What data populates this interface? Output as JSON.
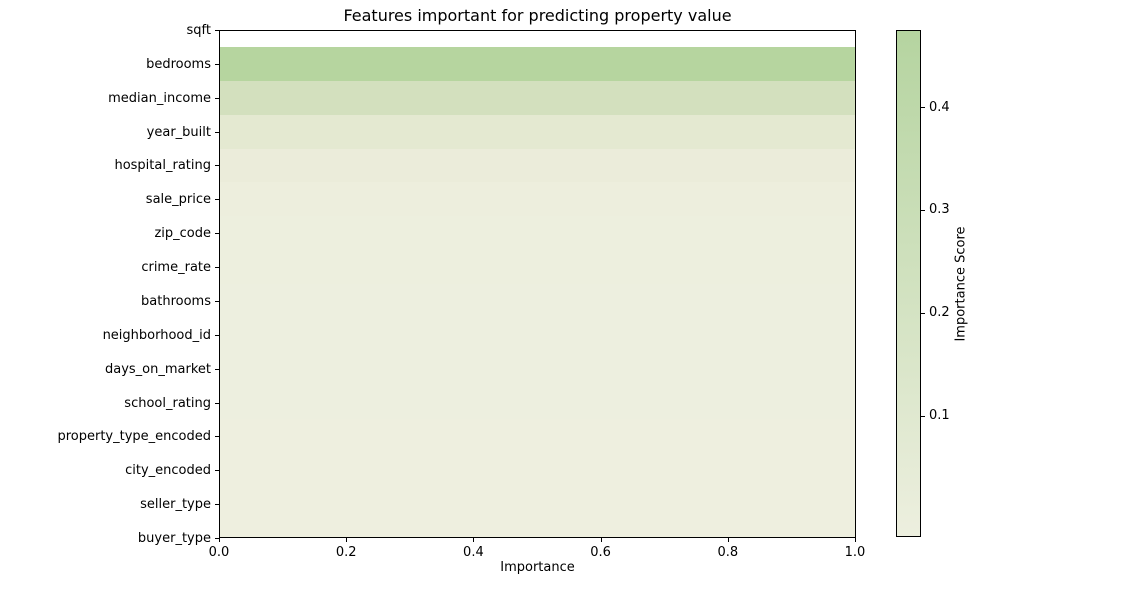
{
  "figure": {
    "background_color": "#ffffff",
    "text_color": "#000000"
  },
  "chart_data": {
    "type": "bar",
    "orientation": "horizontal",
    "title": "Features important for predicting property value",
    "xlabel": "Importance",
    "ylabel": "",
    "xlim": [
      0.0,
      1.0
    ],
    "grid": false,
    "x_tick_values": [
      0.0,
      0.2,
      0.4,
      0.6,
      0.8,
      1.0
    ],
    "x_tick_labels": [
      "0.0",
      "0.2",
      "0.4",
      "0.6",
      "0.8",
      "1.0"
    ],
    "categories": [
      "sqft",
      "bedrooms",
      "median_income",
      "year_built",
      "hospital_rating",
      "sale_price",
      "zip_code",
      "crime_rate",
      "bathrooms",
      "neighborhood_id",
      "days_on_market",
      "school_rating",
      "property_type_encoded",
      "city_encoded",
      "seller_type",
      "buyer_type"
    ],
    "bar_lengths": [
      1.0,
      1.0,
      1.0,
      1.0,
      1.0,
      1.0,
      1.0,
      1.0,
      1.0,
      1.0,
      1.0,
      1.0,
      1.0,
      1.0,
      1.0,
      1.0
    ],
    "bar_colors": [
      "#ffffff",
      "#b6d59f",
      "#d3e0be",
      "#e4e9d1",
      "#ebecda",
      "#edeedd",
      "#edefde",
      "#edefde",
      "#edefdf",
      "#edefdf",
      "#edefdf",
      "#edefdf",
      "#eeefdf",
      "#eeefdf",
      "#eeefdf",
      "#eeefdf"
    ],
    "color_values_estimated": [
      null,
      0.47,
      0.23,
      0.09,
      0.035,
      0.025,
      0.022,
      0.02,
      0.018,
      0.016,
      0.015,
      0.014,
      0.013,
      0.012,
      0.011,
      0.01
    ],
    "note": "Every bar spans the full x-range 0 to 1; importance score is encoded by bar fill color on a pale-to-green colormap. The sqft bar (top row, clipped to half height by the axis limit) renders as blank white.",
    "colorbar": {
      "label": "Importance Score",
      "tick_values": [
        0.4,
        0.3,
        0.2,
        0.1
      ],
      "tick_labels": [
        "0.4",
        "0.3",
        "0.2",
        "0.1"
      ],
      "vmax_top": 0.475,
      "vmin_bottom": -0.018,
      "top_color": "#b5d4a0",
      "bottom_color": "#edefdf",
      "position": "right"
    }
  }
}
